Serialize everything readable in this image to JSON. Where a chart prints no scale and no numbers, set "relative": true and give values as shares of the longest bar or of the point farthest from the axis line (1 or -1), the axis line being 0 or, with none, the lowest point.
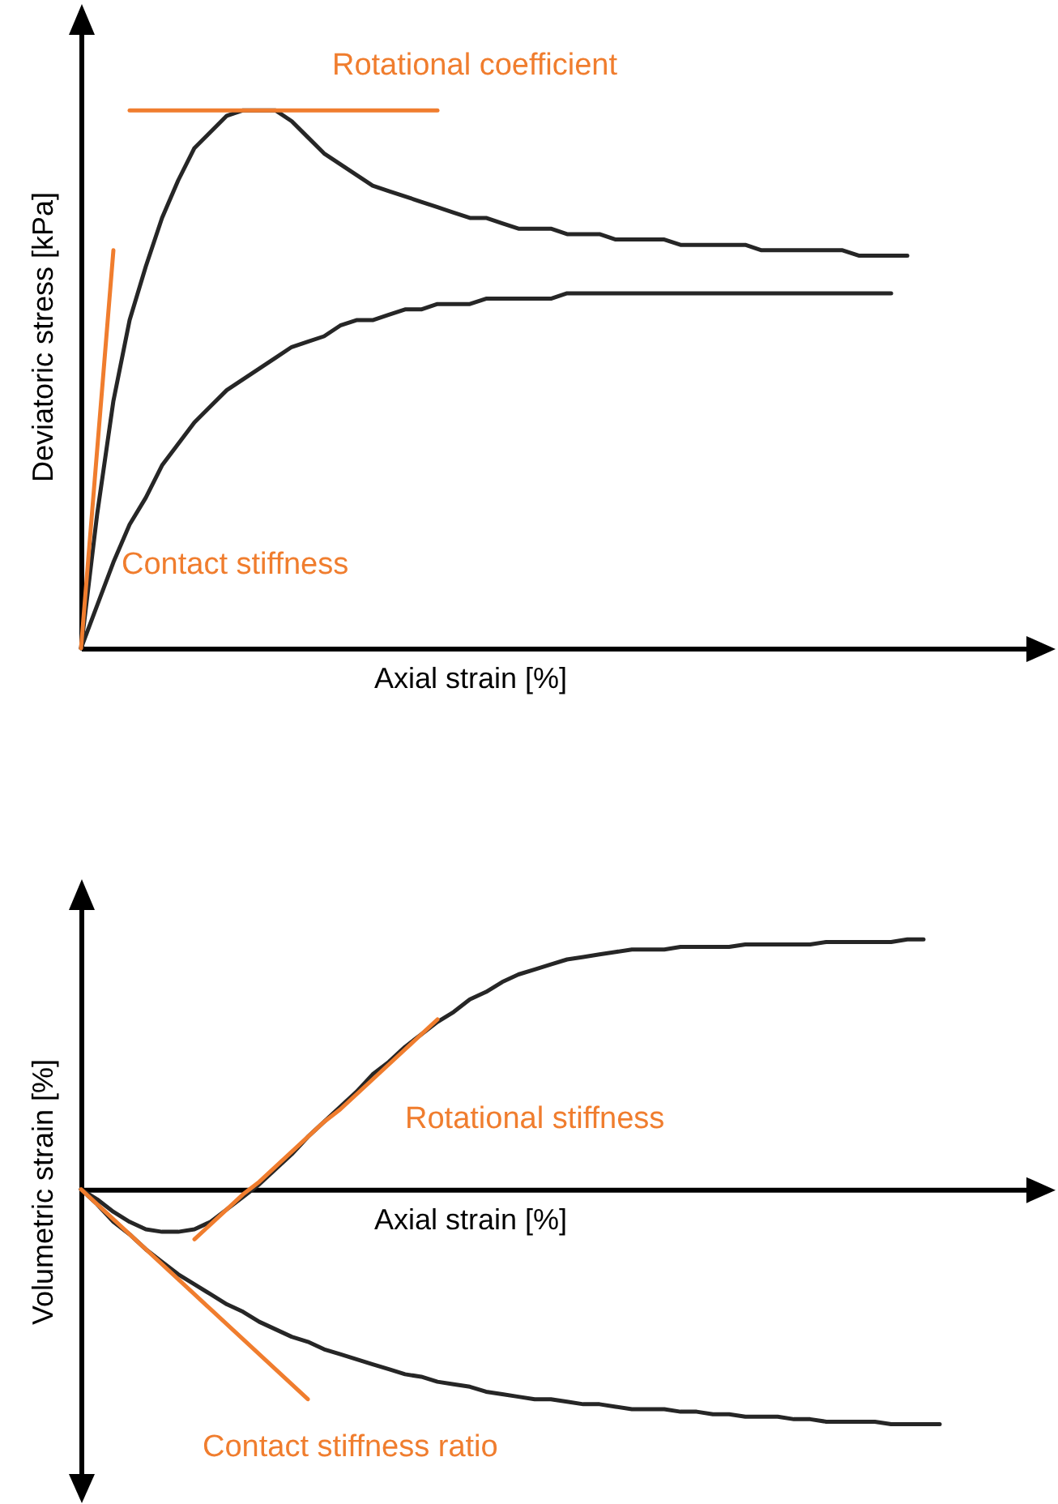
{
  "chart_data": [
    {
      "type": "line",
      "relative": true,
      "tick_labels": false,
      "xlabel": "Axial strain [%]",
      "ylabel": "Deviatoric stress [kPa]",
      "categories": [
        null,
        null,
        null,
        null,
        null,
        null,
        null,
        null,
        null,
        null,
        null,
        null,
        null,
        null,
        null,
        null,
        null,
        null,
        null,
        null,
        null,
        null,
        null,
        null,
        null,
        null,
        null,
        null,
        null,
        null,
        null,
        null,
        null,
        null,
        null,
        null,
        null,
        null,
        null,
        null,
        null,
        null,
        null,
        null,
        null,
        null,
        null,
        null,
        null,
        null,
        null,
        null,
        null,
        null,
        null,
        null,
        null,
        null,
        null,
        null
      ],
      "series": [
        {
          "color": "#262626",
          "values": [
            0,
            0.25,
            0.46,
            0.61,
            0.71,
            0.8,
            0.87,
            0.93,
            0.96,
            0.99,
            1,
            1,
            1,
            0.98,
            0.95,
            0.92,
            0.9,
            0.88,
            0.86,
            0.85,
            0.84,
            0.83,
            0.82,
            0.81,
            0.8,
            0.8,
            0.79,
            0.78,
            0.78,
            0.78,
            0.77,
            0.77,
            0.77,
            0.76,
            0.76,
            0.76,
            0.76,
            0.75,
            0.75,
            0.75,
            0.75,
            0.75,
            0.74,
            0.74,
            0.74,
            0.74,
            0.74,
            0.74,
            0.73,
            0.73,
            0.73,
            0.73,
            null,
            null,
            null,
            null,
            null,
            null,
            null,
            null
          ]
        },
        {
          "color": "#262626",
          "values": [
            0,
            0.08,
            0.16,
            0.23,
            0.28,
            0.34,
            0.38,
            0.42,
            0.45,
            0.48,
            0.5,
            0.52,
            0.54,
            0.56,
            0.57,
            0.58,
            0.6,
            0.61,
            0.61,
            0.62,
            0.63,
            0.63,
            0.64,
            0.64,
            0.64,
            0.65,
            0.65,
            0.65,
            0.65,
            0.65,
            0.66,
            0.66,
            0.66,
            0.66,
            0.66,
            0.66,
            0.66,
            0.66,
            0.66,
            0.66,
            0.66,
            0.66,
            0.66,
            0.66,
            0.66,
            0.66,
            0.66,
            0.66,
            0.66,
            0.66,
            0.66,
            null,
            null,
            null,
            null,
            null,
            null,
            null,
            null,
            null
          ]
        },
        {
          "type": "line",
          "name": "Contact stiffness",
          "color": "#f07d2e",
          "values": [
            0,
            0.37,
            0.74,
            null,
            null,
            null,
            null,
            null,
            null,
            null,
            null,
            null,
            null,
            null,
            null,
            null,
            null,
            null,
            null,
            null,
            null,
            null,
            null,
            null,
            null,
            null,
            null,
            null,
            null,
            null,
            null,
            null,
            null,
            null,
            null,
            null,
            null,
            null,
            null,
            null,
            null,
            null,
            null,
            null,
            null,
            null,
            null,
            null,
            null,
            null,
            null,
            null,
            null,
            null,
            null,
            null,
            null,
            null,
            null,
            null
          ]
        },
        {
          "type": "line",
          "name": "Rotational coefficient",
          "color": "#f07d2e",
          "values": [
            null,
            null,
            null,
            1,
            1,
            1,
            1,
            1,
            1,
            1,
            1,
            1,
            1,
            1,
            1,
            1,
            1,
            1,
            1,
            1,
            1,
            1,
            1,
            null,
            null,
            null,
            null,
            null,
            null,
            null,
            null,
            null,
            null,
            null,
            null,
            null,
            null,
            null,
            null,
            null,
            null,
            null,
            null,
            null,
            null,
            null,
            null,
            null,
            null,
            null,
            null,
            null,
            null,
            null,
            null,
            null,
            null,
            null,
            null,
            null
          ]
        }
      ]
    },
    {
      "type": "line",
      "relative": true,
      "tick_labels": false,
      "xlabel": "Axial strain [%]",
      "ylabel": "Volumetric strain [%]",
      "categories": [
        null,
        null,
        null,
        null,
        null,
        null,
        null,
        null,
        null,
        null,
        null,
        null,
        null,
        null,
        null,
        null,
        null,
        null,
        null,
        null,
        null,
        null,
        null,
        null,
        null,
        null,
        null,
        null,
        null,
        null,
        null,
        null,
        null,
        null,
        null,
        null,
        null,
        null,
        null,
        null,
        null,
        null,
        null,
        null,
        null,
        null,
        null,
        null,
        null,
        null,
        null,
        null,
        null,
        null,
        null,
        null,
        null,
        null,
        null,
        null
      ],
      "series": [
        {
          "color": "#262626",
          "values": [
            0,
            -0.04,
            -0.09,
            -0.13,
            -0.16,
            -0.17,
            -0.17,
            -0.16,
            -0.13,
            -0.08,
            -0.03,
            0.02,
            0.08,
            0.14,
            0.21,
            0.27,
            0.33,
            0.39,
            0.46,
            0.51,
            0.57,
            0.62,
            0.67,
            0.71,
            0.76,
            0.79,
            0.83,
            0.86,
            0.88,
            0.9,
            0.92,
            0.93,
            0.94,
            0.95,
            0.96,
            0.96,
            0.96,
            0.97,
            0.97,
            0.97,
            0.97,
            0.98,
            0.98,
            0.98,
            0.98,
            0.98,
            0.99,
            0.99,
            0.99,
            0.99,
            0.99,
            1,
            1,
            null,
            null,
            null,
            null,
            null,
            null,
            null
          ]
        },
        {
          "color": "#262626",
          "values": [
            0,
            -0.06,
            -0.13,
            -0.18,
            -0.24,
            -0.29,
            -0.34,
            -0.38,
            -0.42,
            -0.46,
            -0.49,
            -0.53,
            -0.56,
            -0.59,
            -0.61,
            -0.64,
            -0.66,
            -0.68,
            -0.7,
            -0.72,
            -0.74,
            -0.75,
            -0.77,
            -0.78,
            -0.79,
            -0.81,
            -0.82,
            -0.83,
            -0.84,
            -0.84,
            -0.85,
            -0.86,
            -0.86,
            -0.87,
            -0.88,
            -0.88,
            -0.88,
            -0.89,
            -0.89,
            -0.9,
            -0.9,
            -0.91,
            -0.91,
            -0.91,
            -0.92,
            -0.92,
            -0.93,
            -0.93,
            -0.93,
            -0.93,
            -0.94,
            -0.94,
            -0.94,
            -0.94,
            null,
            null,
            null,
            null,
            null,
            null
          ]
        },
        {
          "type": "line",
          "name": "Rotational stiffness",
          "color": "#f07d2e",
          "values": [
            null,
            null,
            null,
            null,
            null,
            null,
            null,
            -0.2,
            -0.14,
            -0.08,
            -0.02,
            0.03,
            0.09,
            0.15,
            0.21,
            0.27,
            0.32,
            0.38,
            0.44,
            0.5,
            0.56,
            0.62,
            0.68,
            null,
            null,
            null,
            null,
            null,
            null,
            null,
            null,
            null,
            null,
            null,
            null,
            null,
            null,
            null,
            null,
            null,
            null,
            null,
            null,
            null,
            null,
            null,
            null,
            null,
            null,
            null,
            null,
            null,
            null,
            null,
            null,
            null,
            null,
            null,
            null,
            null
          ]
        },
        {
          "type": "line",
          "name": "Contact stiffness ratio",
          "color": "#f07d2e",
          "values": [
            0,
            -0.06,
            -0.12,
            -0.18,
            -0.24,
            -0.3,
            -0.36,
            -0.42,
            -0.48,
            -0.54,
            -0.6,
            -0.66,
            -0.72,
            -0.78,
            -0.84,
            null,
            null,
            null,
            null,
            null,
            null,
            null,
            null,
            null,
            null,
            null,
            null,
            null,
            null,
            null,
            null,
            null,
            null,
            null,
            null,
            null,
            null,
            null,
            null,
            null,
            null,
            null,
            null,
            null,
            null,
            null,
            null,
            null,
            null,
            null,
            null,
            null,
            null,
            null,
            null,
            null,
            null,
            null,
            null,
            null
          ]
        }
      ]
    }
  ]
}
